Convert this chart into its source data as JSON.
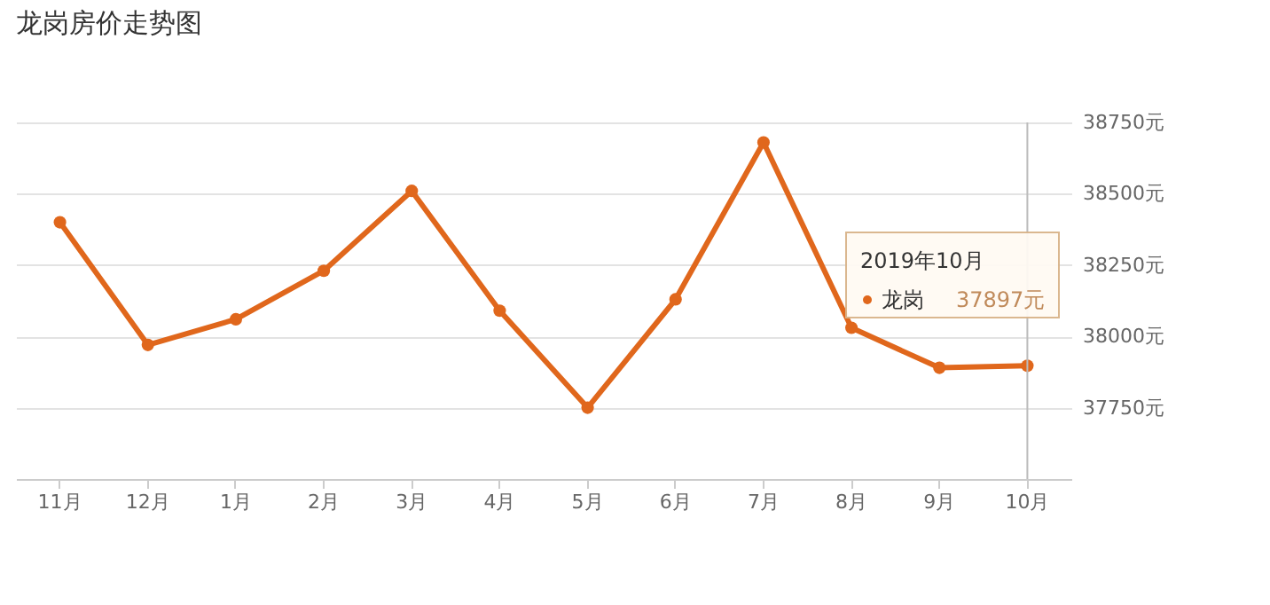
{
  "chart_data": {
    "type": "line",
    "title": "龙岗房价走势图",
    "categories": [
      "11月",
      "12月",
      "1月",
      "2月",
      "3月",
      "4月",
      "5月",
      "6月",
      "7月",
      "8月",
      "9月",
      "10月"
    ],
    "series": [
      {
        "name": "龙岗",
        "color": "#e0671c",
        "values": [
          38400,
          37970,
          38060,
          38230,
          38510,
          38090,
          37750,
          38130,
          38680,
          38030,
          37890,
          37897
        ],
        "value_labels": [
          null,
          null,
          null,
          null,
          null,
          null,
          null,
          null,
          null,
          null,
          null,
          "37897元"
        ]
      }
    ],
    "ylim": [
      37500,
      38750
    ],
    "yticks": [
      {
        "value": 37500,
        "label": null
      },
      {
        "value": 37750,
        "label": "37750元"
      },
      {
        "value": 38000,
        "label": "38000元"
      },
      {
        "value": 38250,
        "label": "38250元"
      },
      {
        "value": 38500,
        "label": "38500元"
      },
      {
        "value": 38750,
        "label": "38750元"
      }
    ],
    "annotations": [
      "2019年10月"
    ],
    "ref_lines": [
      {
        "axis": "x",
        "value": "10月",
        "color": "#bbbbbb"
      }
    ],
    "grid": "y",
    "marker": "circle",
    "line_style": "solid",
    "legend": "right"
  }
}
